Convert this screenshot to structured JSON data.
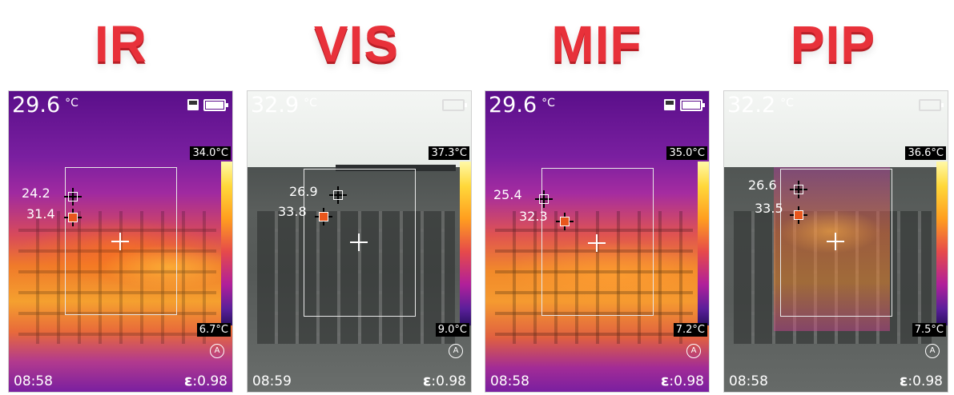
{
  "headings": [
    "IR",
    "VIS",
    "MIF",
    "PIP"
  ],
  "panels": [
    {
      "mode": "IR",
      "main_temp": "29.6",
      "unit": "°C",
      "scale_max": "34.0°C",
      "scale_min": "6.7°C",
      "point1": "24.2",
      "point2": "31.4",
      "time": "08:58",
      "emissivity": ":0.98",
      "eps": "ε"
    },
    {
      "mode": "VIS",
      "main_temp": "32.9",
      "unit": "°C",
      "scale_max": "37.3°C",
      "scale_min": "9.0°C",
      "point1": "26.9",
      "point2": "33.8",
      "time": "08:59",
      "emissivity": ":0.98",
      "eps": "ε"
    },
    {
      "mode": "MIF",
      "main_temp": "29.6",
      "unit": "°C",
      "scale_max": "35.0°C",
      "scale_min": "7.2°C",
      "point1": "25.4",
      "point2": "32.3",
      "time": "08:58",
      "emissivity": ":0.98",
      "eps": "ε"
    },
    {
      "mode": "PIP",
      "main_temp": "32.2",
      "unit": "°C",
      "scale_max": "36.6°C",
      "scale_min": "7.5°C",
      "point1": "26.6",
      "point2": "33.5",
      "time": "08:58",
      "emissivity": ":0.98",
      "eps": "ε"
    }
  ],
  "icons": {
    "auto": "A",
    "sd_card": "sd-card-icon",
    "battery": "battery-icon"
  }
}
